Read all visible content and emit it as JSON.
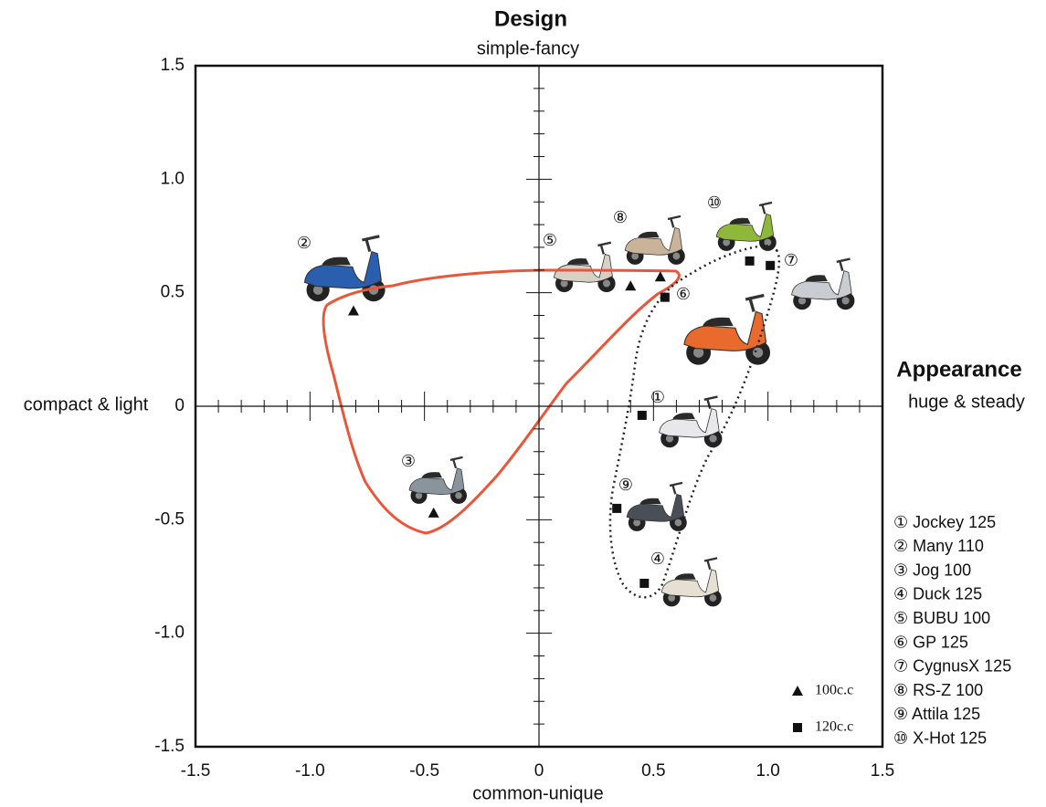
{
  "chart_data": {
    "type": "scatter",
    "title": "Design",
    "subtitle": "simple-fancy",
    "x_label": "common-unique",
    "right_label": "Appearance",
    "right_sublabel": "huge & steady",
    "left_label": "compact & light",
    "xlim": [
      -1.5,
      1.5
    ],
    "ylim": [
      -1.5,
      1.5
    ],
    "xticks": [
      -1.5,
      {
        "value": -1,
        "label": "-1.0"
      },
      -0.5,
      0,
      0.5,
      {
        "value": 1,
        "label": "1.0"
      },
      1.5
    ],
    "yticks": [
      -1.5,
      {
        "value": -1,
        "label": "-1.0"
      },
      -0.5,
      0,
      0.5,
      {
        "value": 1,
        "label": "1.0"
      },
      1.5
    ],
    "series": [
      {
        "name": "100c.c",
        "marker": "triangle",
        "color": "#111111",
        "x": [
          -0.81,
          -0.46,
          0.4,
          0.53
        ],
        "y": [
          0.42,
          -0.47,
          0.53,
          0.57
        ],
        "labels": [
          "②",
          "③",
          "⑤",
          "⑧"
        ]
      },
      {
        "name": "120c.c",
        "marker": "square",
        "color": "#111111",
        "x": [
          0.55,
          1.01,
          0.92,
          0.45,
          0.34,
          0.46
        ],
        "y": [
          0.48,
          0.62,
          0.64,
          -0.04,
          -0.45,
          -0.78
        ],
        "labels": [
          "⑥",
          "⑦",
          "⑩",
          "①",
          "⑨",
          "④"
        ]
      }
    ],
    "models": [
      "① Jockey 125",
      "② Many 110",
      "③ Jog 100",
      "④ Duck 125",
      "⑤ BUBU 100",
      "⑥ GP 125",
      "⑦ CygnusX 125",
      "⑧ RS-Z 100",
      "⑨ Attila 125",
      "⑩ X-Hot 125"
    ]
  }
}
